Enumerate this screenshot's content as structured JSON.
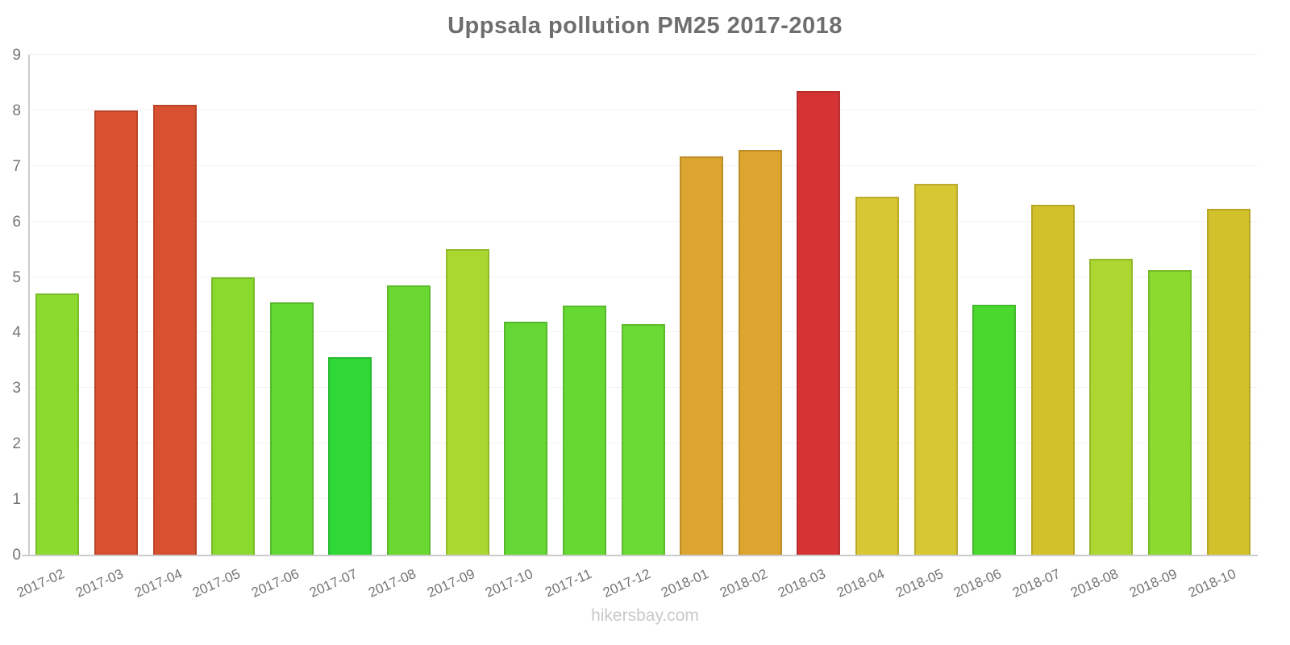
{
  "title": "Uppsala pollution PM25 2017-2018",
  "watermark": "hikersbay.com",
  "chart_data": {
    "type": "bar",
    "title": "Uppsala pollution PM25 2017-2018",
    "xlabel": "",
    "ylabel": "",
    "ylim": [
      0,
      9
    ],
    "yticks": [
      0,
      1,
      2,
      3,
      4,
      5,
      6,
      7,
      8,
      9
    ],
    "grid": true,
    "legend": "none",
    "categories": [
      "2017-02",
      "2017-03",
      "2017-04",
      "2017-05",
      "2017-06",
      "2017-07",
      "2017-08",
      "2017-09",
      "2017-10",
      "2017-11",
      "2017-12",
      "2018-01",
      "2018-02",
      "2018-03",
      "2018-04",
      "2018-05",
      "2018-06",
      "2018-07",
      "2018-08",
      "2018-09",
      "2018-10"
    ],
    "values": [
      4.7,
      8.0,
      8.1,
      5.0,
      4.55,
      3.55,
      4.85,
      5.5,
      4.2,
      4.48,
      4.15,
      7.17,
      7.28,
      8.35,
      6.45,
      6.68,
      4.5,
      6.3,
      5.33,
      5.13,
      6.23
    ],
    "bar_colors": [
      "#8cd92f",
      "#d7502f",
      "#d7502f",
      "#8ad92f",
      "#64d832",
      "#2fd737",
      "#6bd832",
      "#aad831",
      "#64d734",
      "#66d832",
      "#6bd934",
      "#dca52f",
      "#dca52f",
      "#d63434",
      "#d7c733",
      "#d7c733",
      "#4ad72e",
      "#d2c12b",
      "#acd733",
      "#8cd92f",
      "#d2c12b"
    ],
    "colors_meaning": {
      "axis_color": "#cccccc",
      "grid_color": "#f2f2f2",
      "label_color": "#757575",
      "title_color": "#6e6e6e",
      "watermark_color": "#c9c9c9"
    }
  }
}
